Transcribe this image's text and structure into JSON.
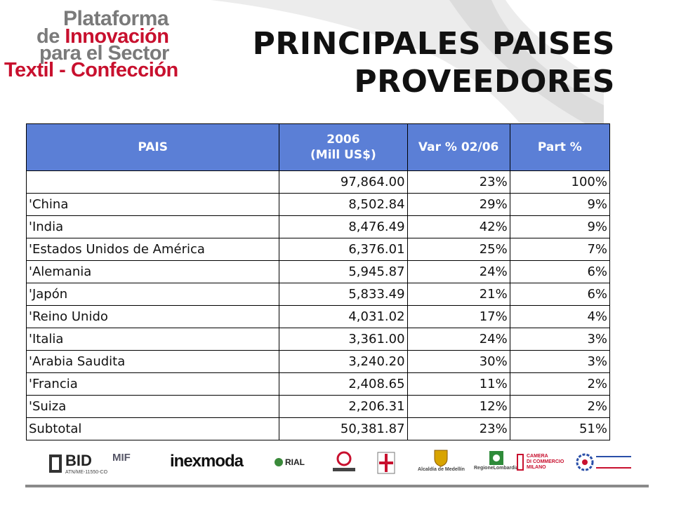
{
  "logo": {
    "line1": "Plataforma",
    "line2a": "de ",
    "line2b": "Innovación",
    "line3": "para el Sector",
    "line4": "Textil - Confección"
  },
  "title": {
    "line1": "PRINCIPALES PAISES",
    "line2": "PROVEEDORES"
  },
  "table": {
    "headers": [
      "PAIS",
      "2006",
      "(Mill US$)",
      "Var % 02/06",
      "Part %"
    ],
    "rows": [
      {
        "pais": "",
        "valor": "97,864.00",
        "var": "23%",
        "part": "100%"
      },
      {
        "pais": "'China",
        "valor": "8,502.84",
        "var": "29%",
        "part": "9%"
      },
      {
        "pais": "'India",
        "valor": "8,476.49",
        "var": "42%",
        "part": "9%"
      },
      {
        "pais": "'Estados Unidos de América",
        "valor": "6,376.01",
        "var": "25%",
        "part": "7%"
      },
      {
        "pais": "'Alemania",
        "valor": "5,945.87",
        "var": "24%",
        "part": "6%"
      },
      {
        "pais": "'Japón",
        "valor": "5,833.49",
        "var": "21%",
        "part": "6%"
      },
      {
        "pais": "'Reino Unido",
        "valor": "4,031.02",
        "var": "17%",
        "part": "4%"
      },
      {
        "pais": "'Italia",
        "valor": "3,361.00",
        "var": "24%",
        "part": "3%"
      },
      {
        "pais": "'Arabia Saudita",
        "valor": "3,240.20",
        "var": "30%",
        "part": "3%"
      },
      {
        "pais": "'Francia",
        "valor": "2,408.65",
        "var": "11%",
        "part": "2%"
      },
      {
        "pais": "'Suiza",
        "valor": "2,206.31",
        "var": "12%",
        "part": "2%"
      },
      {
        "pais": "Subtotal",
        "valor": "50,381.87",
        "var": "23%",
        "part": "51%"
      }
    ]
  },
  "footer_logos": {
    "bid": "BID",
    "bid_sub": "ATN/ME-11550-CO",
    "mif": "MIF",
    "inexmoda": "inexmoda",
    "rial": "RIAL",
    "alcaldia": "Alcaldía de Medellín",
    "regione": "RegioneLombardia",
    "camera_1": "CAMERA",
    "camera_2": "DI COMMERCIO",
    "camera_3": "MILANO"
  },
  "colors": {
    "header_bg": "#5b7fd6",
    "brand_red": "#c8102e",
    "brand_grey": "#7a7a7a"
  }
}
